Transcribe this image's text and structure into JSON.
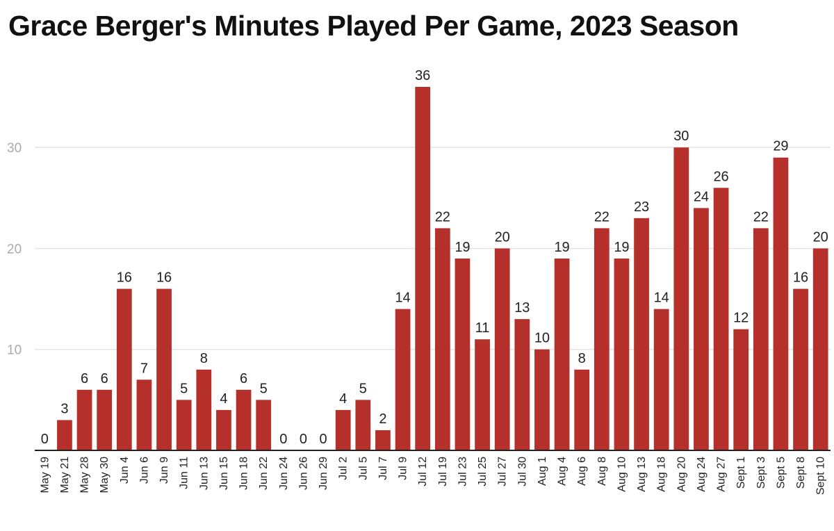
{
  "chart_data": {
    "type": "bar",
    "title": "Grace Berger's Minutes Played Per Game, 2023 Season",
    "xlabel": "",
    "ylabel": "",
    "ylim": [
      0,
      36
    ],
    "yticks": [
      10,
      20,
      30
    ],
    "grid": true,
    "bar_color": "#b5302a",
    "categories": [
      "May 19",
      "May 21",
      "May 28",
      "May 30",
      "Jun 4",
      "Jun 6",
      "Jun 9",
      "Jun 11",
      "Jun 13",
      "Jun 15",
      "Jun 18",
      "Jun 22",
      "Jun 24",
      "Jun 26",
      "Jun 29",
      "Jul 2",
      "Jul 5",
      "Jul 7",
      "Jul 9",
      "Jul 12",
      "Jul 19",
      "Jul 23",
      "Jul 25",
      "Jul 27",
      "Jul 30",
      "Aug 1",
      "Aug 4",
      "Aug 6",
      "Aug 8",
      "Aug 10",
      "Aug 13",
      "Aug 18",
      "Aug 20",
      "Aug 24",
      "Aug 27",
      "Sept 1",
      "Sept 3",
      "Sept 5",
      "Sept 8",
      "Sept 10"
    ],
    "values": [
      0,
      3,
      6,
      6,
      16,
      7,
      16,
      5,
      8,
      4,
      6,
      5,
      0,
      0,
      0,
      4,
      5,
      2,
      14,
      36,
      22,
      19,
      11,
      20,
      13,
      10,
      19,
      8,
      22,
      19,
      23,
      14,
      30,
      24,
      26,
      12,
      22,
      29,
      16,
      20
    ]
  }
}
